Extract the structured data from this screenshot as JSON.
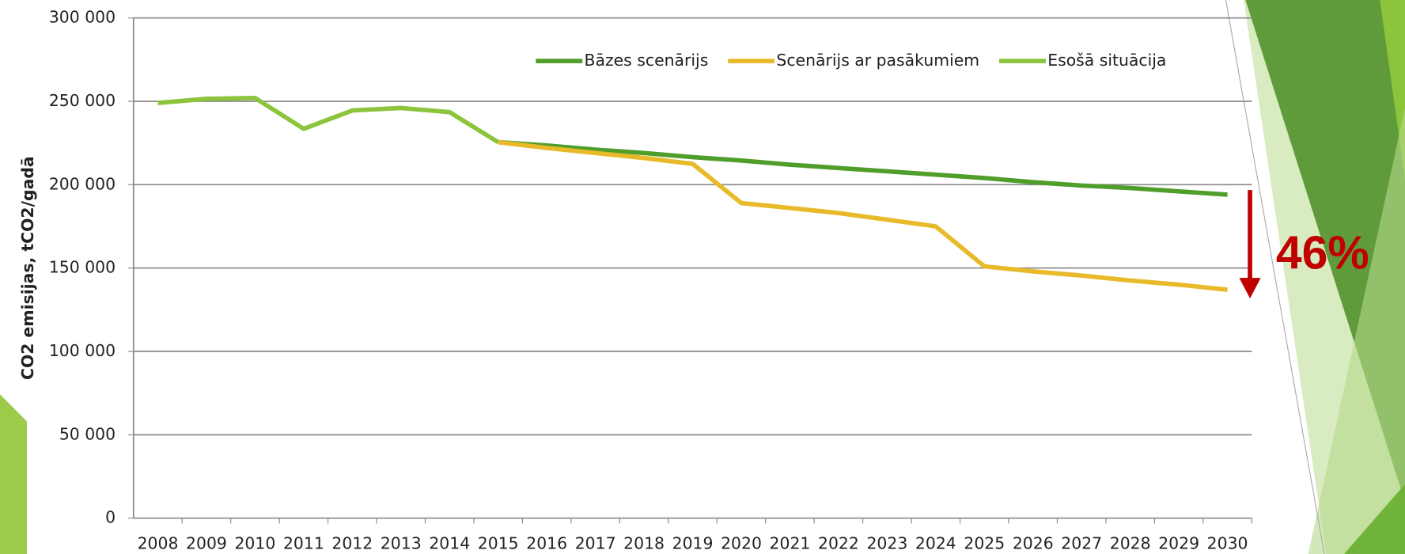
{
  "chart_data": {
    "type": "line",
    "y_label": "CO2 emisijas, tCO2/gadā",
    "annotation": "46%",
    "categories": [
      "2008",
      "2009",
      "2010",
      "2011",
      "2012",
      "2013",
      "2014",
      "2015",
      "2016",
      "2017",
      "2018",
      "2019",
      "2020",
      "2021",
      "2022",
      "2023",
      "2024",
      "2025",
      "2026",
      "2027",
      "2028",
      "2029",
      "2030"
    ],
    "series": [
      {
        "name": "Bāzes scenārijs",
        "color": "#4f9d2a",
        "values": [
          null,
          null,
          null,
          null,
          null,
          null,
          null,
          225500,
          223500,
          221000,
          219000,
          216500,
          214500,
          212000,
          210000,
          208000,
          206000,
          204000,
          201500,
          199500,
          198000,
          196000,
          194000
        ]
      },
      {
        "name": "Scenārijs ar pasākumiem",
        "color": "#e8ba2a",
        "values": [
          null,
          null,
          null,
          null,
          null,
          null,
          null,
          225500,
          222000,
          219000,
          216000,
          212500,
          189000,
          186000,
          183000,
          179000,
          175000,
          151000,
          148000,
          145500,
          142500,
          140000,
          137000
        ]
      },
      {
        "name": "Esošā situācija",
        "color": "#8cc43c",
        "values": [
          249000,
          251500,
          252000,
          233500,
          244500,
          246000,
          243500,
          225500,
          null,
          null,
          null,
          null,
          null,
          null,
          null,
          null,
          null,
          null,
          null,
          null,
          null,
          null,
          null
        ]
      }
    ],
    "ylim": [
      0,
      300000
    ],
    "yticks": [
      0,
      {
        "value": 50000,
        "label": "50 000"
      },
      {
        "value": 100000,
        "label": "100 000"
      },
      {
        "value": 150000,
        "label": "150 000"
      },
      {
        "value": 200000,
        "label": "200 000"
      },
      {
        "value": 250000,
        "label": "250 000"
      },
      {
        "value": 300000,
        "label": "300 000"
      }
    ],
    "grid": true,
    "legend": "top-right"
  }
}
